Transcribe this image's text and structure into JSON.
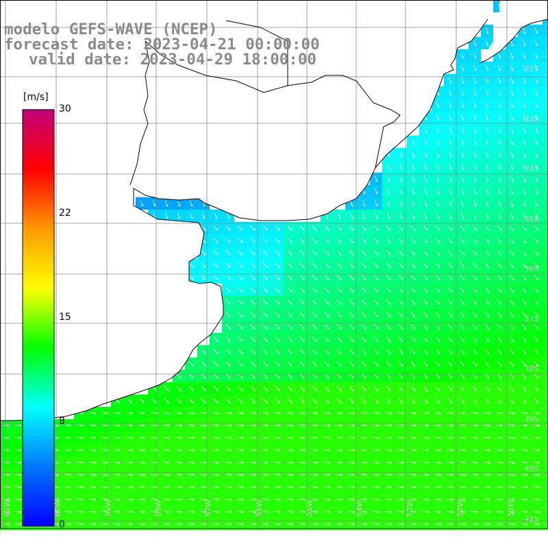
{
  "header": {
    "model": "modelo GEFS-WAVE (NCEP)",
    "forecast": "forecast date: 2023-04-21 00:00:00",
    "valid": "valid date: 2023-04-29 18:00:00"
  },
  "colorbar": {
    "unit": "[m/s]",
    "ticks": [
      "30",
      "22",
      "15",
      "8",
      "0"
    ],
    "colors": [
      "#0000ff",
      "#0077ff",
      "#00ffff",
      "#00ff00",
      "#ffff00",
      "#ff9900",
      "#ff0000",
      "#c4007a"
    ]
  },
  "axes": {
    "lat_labels": [
      "32S",
      "33S",
      "34S",
      "35S",
      "36S",
      "37S",
      "38S",
      "39S",
      "40S",
      "41S"
    ],
    "lon_labels": [
      "61W",
      "60W",
      "59W",
      "58W",
      "57W",
      "56W",
      "55W",
      "54W",
      "53W",
      "52W",
      "51W"
    ]
  },
  "map": {
    "land_color": "#ffffff",
    "coast_color": "#000000",
    "grid_color": "#888888",
    "arrow_color": "#ffffff"
  }
}
